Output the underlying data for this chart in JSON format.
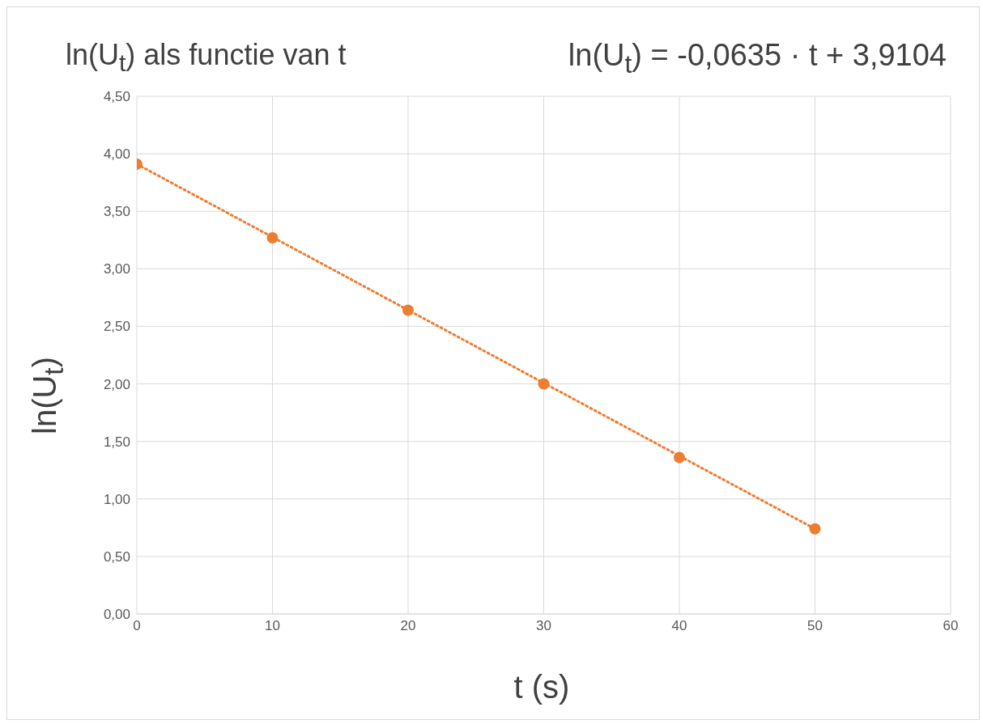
{
  "chart_data": {
    "type": "scatter",
    "title": "ln(U$_{t}$) als functie van t",
    "xlabel": "t (s)",
    "ylabel": "ln(U$_{t}$)",
    "annotations": [
      "ln(U$_{t}$) = -0,0635 · t + 3,9104"
    ],
    "series": [
      {
        "color": "#ed7d31",
        "marker": "circle",
        "x": [
          0,
          10,
          20,
          30,
          40,
          50
        ],
        "values": [
          3.91,
          3.27,
          2.64,
          2.0,
          1.36,
          0.74
        ]
      },
      {
        "type": "line",
        "color": "#ed7d31",
        "marker": "none",
        "line_style": "dotted",
        "x": [
          0,
          50
        ],
        "values": [
          3.91,
          0.74
        ]
      }
    ],
    "xlim": [
      0,
      60
    ],
    "xticks": [
      0,
      10,
      20,
      30,
      40,
      50,
      60
    ],
    "ylim": [
      0,
      4.5
    ],
    "yticks": [
      {
        "value": 0,
        "label": "0,00"
      },
      {
        "value": 0.5,
        "label": "0,50"
      },
      {
        "value": 1,
        "label": "1,00"
      },
      {
        "value": 1.5,
        "label": "1,50"
      },
      {
        "value": 2,
        "label": "2,00"
      },
      {
        "value": 2.5,
        "label": "2,50"
      },
      {
        "value": 3,
        "label": "3,00"
      },
      {
        "value": 3.5,
        "label": "3,50"
      },
      {
        "value": 4,
        "label": "4,00"
      },
      {
        "value": 4.5,
        "label": "4,50"
      }
    ],
    "grid": true
  }
}
